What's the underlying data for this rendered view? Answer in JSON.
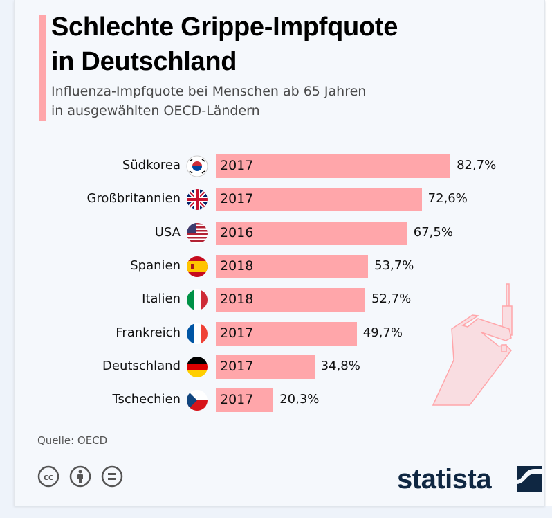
{
  "chart_data": {
    "type": "bar",
    "orientation": "horizontal",
    "title": "Schlechte Grippe-Impfquote in Deutschland",
    "title_lines": [
      "Schlechte Grippe-Impfquote",
      "in Deutschland"
    ],
    "subtitle_lines": [
      "Influenza-Impfquote bei Menschen ab 65 Jahren",
      "in ausgewählten OECD-Ländern"
    ],
    "categories": [
      "Südkorea",
      "Großbritannien",
      "USA",
      "Spanien",
      "Italien",
      "Frankreich",
      "Deutschland",
      "Tschechien"
    ],
    "years": [
      "2017",
      "2017",
      "2016",
      "2018",
      "2018",
      "2017",
      "2017",
      "2017"
    ],
    "values": [
      82.7,
      72.6,
      67.5,
      53.7,
      52.7,
      49.7,
      34.8,
      20.3
    ],
    "value_labels": [
      "82,7%",
      "72,6%",
      "67,5%",
      "53,7%",
      "52,7%",
      "49,7%",
      "34,8%",
      "20,3%"
    ],
    "flags": [
      "south-korea-flag-icon",
      "uk-flag-icon",
      "usa-flag-icon",
      "spain-flag-icon",
      "italy-flag-icon",
      "france-flag-icon",
      "germany-flag-icon",
      "czech-flag-icon"
    ],
    "unit": "%",
    "xlim": [
      0,
      100
    ],
    "grid": false,
    "bar_color": "#ffa6aa"
  },
  "source": "Quelle: OECD",
  "brand": "statista",
  "license_icons": [
    "cc-icon",
    "by-icon",
    "nd-icon"
  ]
}
